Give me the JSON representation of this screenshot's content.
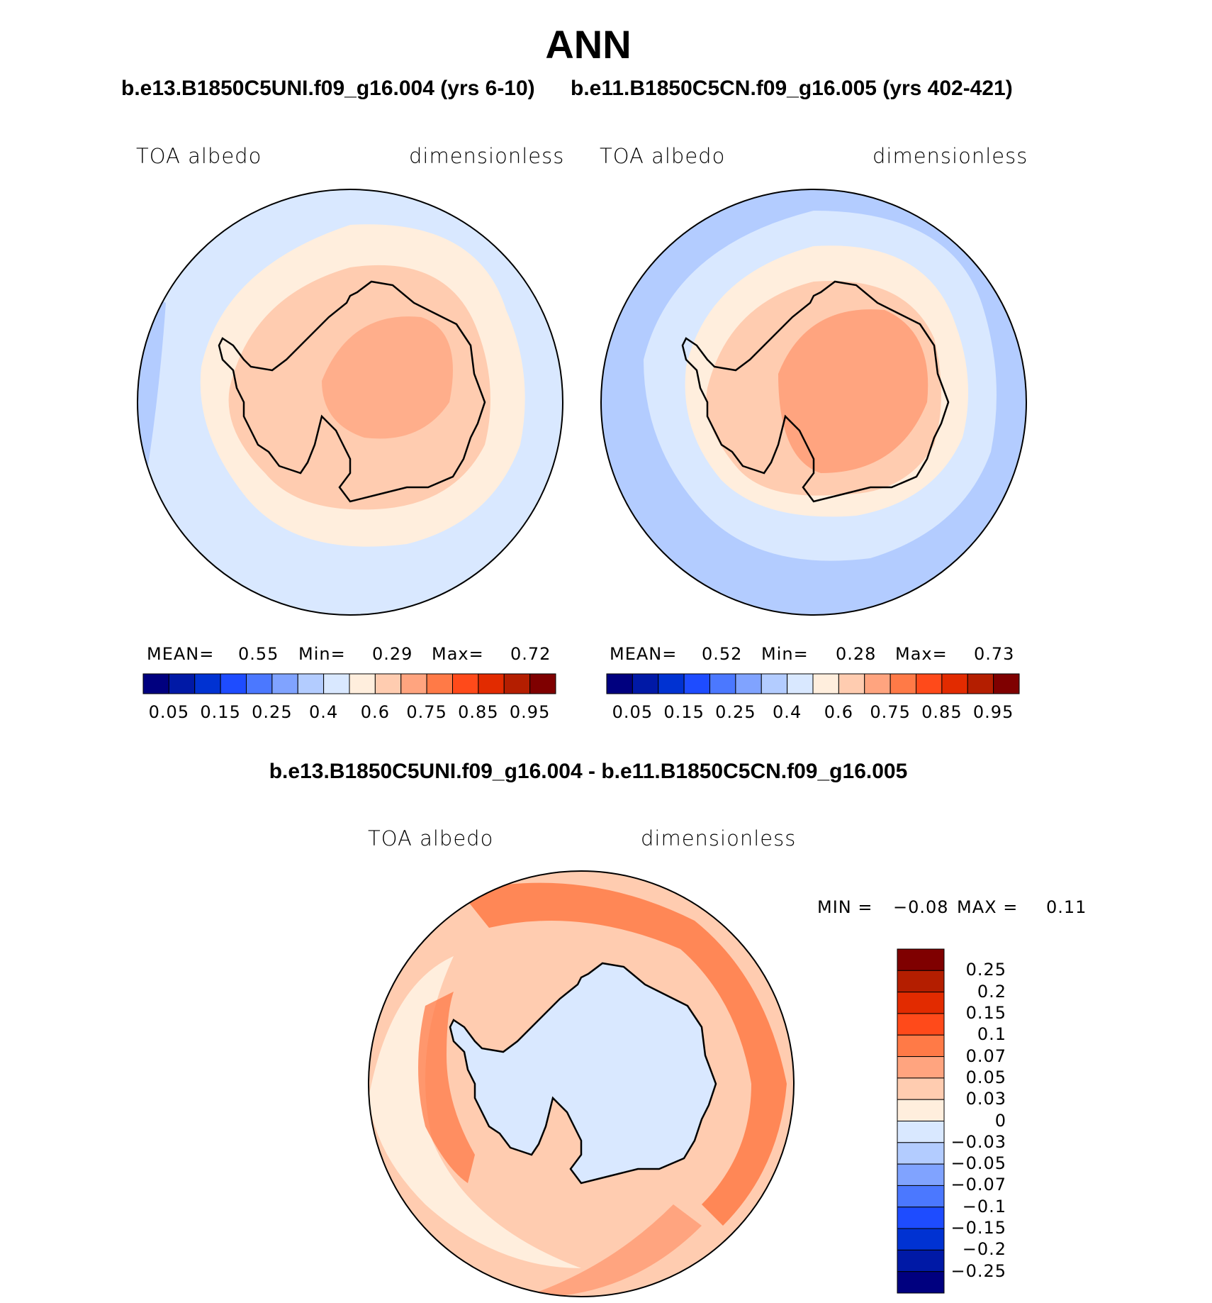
{
  "page_title": "ANN",
  "panels": {
    "left": {
      "case_title": "b.e13.B1850C5UNI.f09_g16.004 (yrs 6-10)",
      "variable": "TOA albedo",
      "units": "dimensionless",
      "mean_label": "MEAN=",
      "mean_value": "0.55",
      "min_label": "Min=",
      "min_value": "0.29",
      "max_label": "Max=",
      "max_value": "0.72"
    },
    "right": {
      "case_title": "b.e11.B1850C5CN.f09_g16.005 (yrs 402-421)",
      "variable": "TOA albedo",
      "units": "dimensionless",
      "mean_label": "MEAN=",
      "mean_value": "0.52",
      "min_label": "Min=",
      "min_value": "0.28",
      "max_label": "Max=",
      "max_value": "0.73"
    },
    "diff": {
      "case_title": "b.e13.B1850C5UNI.f09_g16.004 - b.e11.B1850C5CN.f09_g16.005",
      "variable": "TOA albedo",
      "units": "dimensionless",
      "min_label": "MIN =",
      "min_value": "−0.08",
      "max_label": "MAX =",
      "max_value": "0.11"
    }
  },
  "colorbars": {
    "absolute": {
      "colors": [
        "#00007f",
        "#0019a6",
        "#0032d2",
        "#1e4cff",
        "#4b78ff",
        "#80a3ff",
        "#b3ccff",
        "#d9e8ff",
        "#ffeedd",
        "#ffccb0",
        "#ffa47f",
        "#ff7a47",
        "#ff4a1a",
        "#e22b00",
        "#b41e00",
        "#7f0000"
      ],
      "tick_labels": [
        "0.05",
        "0.15",
        "0.25",
        "0.4",
        "0.6",
        "0.75",
        "0.85",
        "0.95"
      ]
    },
    "difference": {
      "colors": [
        "#7f0000",
        "#b41e00",
        "#e22b00",
        "#ff4a1a",
        "#ff7a47",
        "#ffa47f",
        "#ffccb0",
        "#ffeedd",
        "#d9e8ff",
        "#b3ccff",
        "#80a3ff",
        "#4b78ff",
        "#1e4cff",
        "#0032d2",
        "#0019a6",
        "#00007f"
      ],
      "tick_labels": [
        "0.25",
        "0.2",
        "0.15",
        "0.1",
        "0.07",
        "0.05",
        "0.03",
        "0",
        "−0.03",
        "−0.05",
        "−0.07",
        "−0.1",
        "−0.15",
        "−0.2",
        "−0.25"
      ]
    }
  },
  "colors": {
    "ocean_light": "#d9e8ff",
    "ocean_mid": "#b3ccff",
    "warm_lightest": "#ffeedd",
    "warm_light": "#ffccb0",
    "warm_mid": "#ffa47f",
    "warm_strong": "#ff7a47"
  }
}
